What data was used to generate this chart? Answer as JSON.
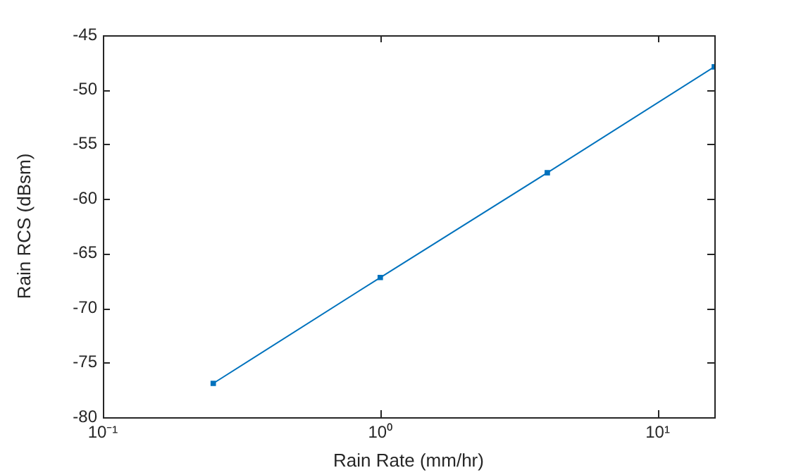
{
  "chart_data": {
    "type": "line",
    "xlabel": "Rain Rate (mm/hr)",
    "ylabel": "Rain RCS (dBsm)",
    "log": "x",
    "x": [
      0.25,
      1,
      4,
      16
    ],
    "series": [
      {
        "color": "#0072bd",
        "values": [
          -76.9,
          -67.2,
          -57.6,
          -47.9
        ]
      }
    ],
    "xlim": [
      0.1,
      16
    ],
    "xticks": [
      {
        "value": 0.1,
        "label": "10⁻¹"
      },
      {
        "value": 1,
        "label": "10⁰"
      },
      {
        "value": 10,
        "label": "10¹"
      }
    ],
    "ylim": [
      -80,
      -45
    ],
    "yticks": [
      -80,
      -75,
      -70,
      -65,
      -60,
      -55,
      -50,
      -45
    ],
    "grid": false,
    "legend": false,
    "marker": "square",
    "line_style": "solid"
  }
}
